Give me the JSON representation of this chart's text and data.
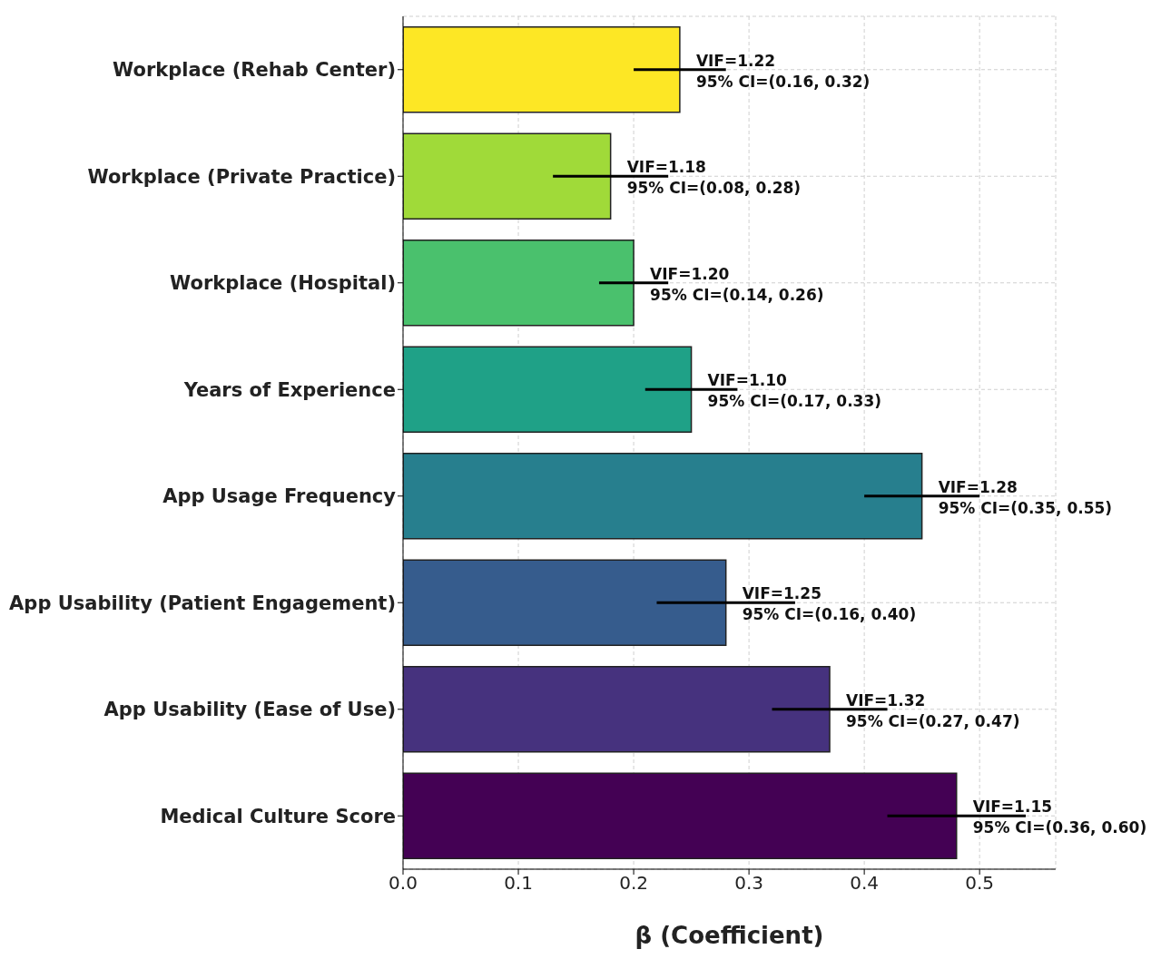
{
  "chart_data": {
    "type": "bar",
    "orientation": "horizontal",
    "xlabel": "β (Coefficient)",
    "categories": [
      "Workplace (Rehab Center)",
      "Workplace (Private Practice)",
      "Workplace (Hospital)",
      "Years of Experience",
      "App Usage Frequency",
      "App Usability (Patient Engagement)",
      "App Usability (Ease of Use)",
      "Medical Culture Score"
    ],
    "values": [
      0.24,
      0.18,
      0.2,
      0.25,
      0.45,
      0.28,
      0.37,
      0.48
    ],
    "errors": [
      0.04,
      0.05,
      0.03,
      0.04,
      0.05,
      0.06,
      0.05,
      0.06
    ],
    "colors": [
      "#fde725",
      "#a0da39",
      "#4ac16d",
      "#1fa187",
      "#277f8e",
      "#365c8d",
      "#46327e",
      "#440154"
    ],
    "xlim": [
      0,
      0.566
    ],
    "xticks": [
      {
        "value": 0,
        "label": "0.0"
      },
      0.1,
      0.2,
      0.3,
      0.4,
      0.5
    ],
    "grid": true,
    "annotations": [
      {
        "text": "VIF=1.22\n95% CI=(0.16, 0.32)",
        "x": 0.24,
        "y": "Workplace (Rehab Center)"
      },
      {
        "text": "VIF=1.18\n95% CI=(0.08, 0.28)",
        "x": 0.18,
        "y": "Workplace (Private Practice)"
      },
      {
        "text": "VIF=1.20\n95% CI=(0.14, 0.26)",
        "x": 0.2,
        "y": "Workplace (Hospital)"
      },
      {
        "text": "VIF=1.10\n95% CI=(0.17, 0.33)",
        "x": 0.25,
        "y": "Years of Experience"
      },
      {
        "text": "VIF=1.28\n95% CI=(0.35, 0.55)",
        "x": 0.45,
        "y": "App Usage Frequency"
      },
      {
        "text": "VIF=1.25\n95% CI=(0.16, 0.40)",
        "x": 0.28,
        "y": "App Usability (Patient Engagement)"
      },
      {
        "text": "VIF=1.32\n95% CI=(0.27, 0.47)",
        "x": 0.37,
        "y": "App Usability (Ease of Use)"
      },
      {
        "text": "VIF=1.15\n95% CI=(0.36, 0.60)",
        "x": 0.48,
        "y": "Medical Culture Score"
      }
    ]
  }
}
